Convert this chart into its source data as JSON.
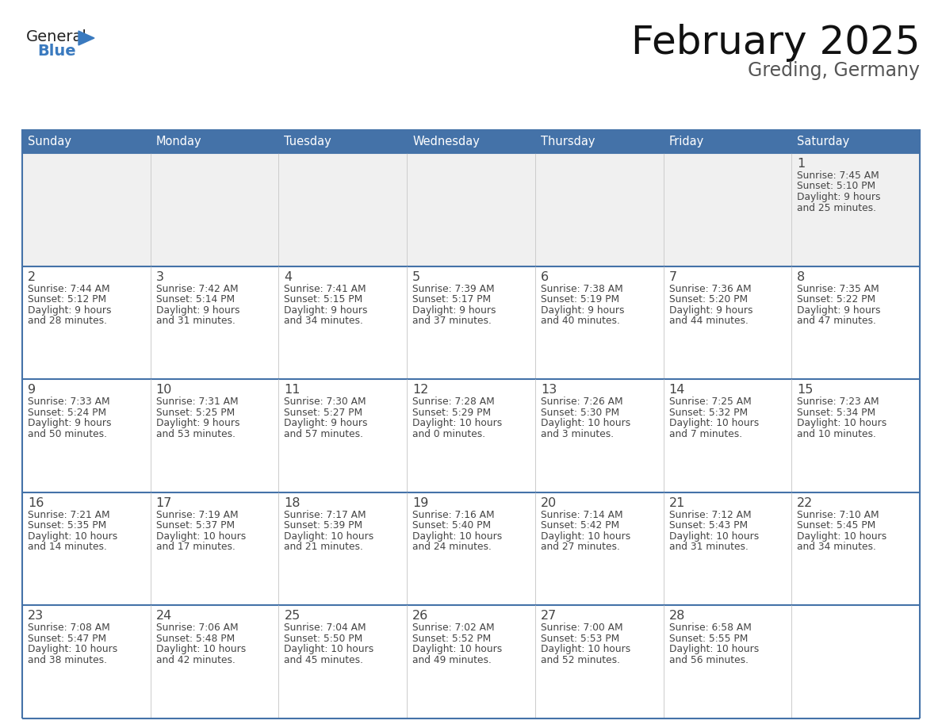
{
  "title": "February 2025",
  "subtitle": "Greding, Germany",
  "header_bg": "#4472a8",
  "header_text_color": "#ffffff",
  "week1_bg": "#f0f0f0",
  "cell_bg": "#ffffff",
  "border_color": "#4472a8",
  "grid_color": "#cccccc",
  "text_color": "#444444",
  "day_num_color": "#444444",
  "day_headers": [
    "Sunday",
    "Monday",
    "Tuesday",
    "Wednesday",
    "Thursday",
    "Friday",
    "Saturday"
  ],
  "weeks": [
    [
      {
        "day": null,
        "info": null
      },
      {
        "day": null,
        "info": null
      },
      {
        "day": null,
        "info": null
      },
      {
        "day": null,
        "info": null
      },
      {
        "day": null,
        "info": null
      },
      {
        "day": null,
        "info": null
      },
      {
        "day": "1",
        "info": "Sunrise: 7:45 AM\nSunset: 5:10 PM\nDaylight: 9 hours\nand 25 minutes."
      }
    ],
    [
      {
        "day": "2",
        "info": "Sunrise: 7:44 AM\nSunset: 5:12 PM\nDaylight: 9 hours\nand 28 minutes."
      },
      {
        "day": "3",
        "info": "Sunrise: 7:42 AM\nSunset: 5:14 PM\nDaylight: 9 hours\nand 31 minutes."
      },
      {
        "day": "4",
        "info": "Sunrise: 7:41 AM\nSunset: 5:15 PM\nDaylight: 9 hours\nand 34 minutes."
      },
      {
        "day": "5",
        "info": "Sunrise: 7:39 AM\nSunset: 5:17 PM\nDaylight: 9 hours\nand 37 minutes."
      },
      {
        "day": "6",
        "info": "Sunrise: 7:38 AM\nSunset: 5:19 PM\nDaylight: 9 hours\nand 40 minutes."
      },
      {
        "day": "7",
        "info": "Sunrise: 7:36 AM\nSunset: 5:20 PM\nDaylight: 9 hours\nand 44 minutes."
      },
      {
        "day": "8",
        "info": "Sunrise: 7:35 AM\nSunset: 5:22 PM\nDaylight: 9 hours\nand 47 minutes."
      }
    ],
    [
      {
        "day": "9",
        "info": "Sunrise: 7:33 AM\nSunset: 5:24 PM\nDaylight: 9 hours\nand 50 minutes."
      },
      {
        "day": "10",
        "info": "Sunrise: 7:31 AM\nSunset: 5:25 PM\nDaylight: 9 hours\nand 53 minutes."
      },
      {
        "day": "11",
        "info": "Sunrise: 7:30 AM\nSunset: 5:27 PM\nDaylight: 9 hours\nand 57 minutes."
      },
      {
        "day": "12",
        "info": "Sunrise: 7:28 AM\nSunset: 5:29 PM\nDaylight: 10 hours\nand 0 minutes."
      },
      {
        "day": "13",
        "info": "Sunrise: 7:26 AM\nSunset: 5:30 PM\nDaylight: 10 hours\nand 3 minutes."
      },
      {
        "day": "14",
        "info": "Sunrise: 7:25 AM\nSunset: 5:32 PM\nDaylight: 10 hours\nand 7 minutes."
      },
      {
        "day": "15",
        "info": "Sunrise: 7:23 AM\nSunset: 5:34 PM\nDaylight: 10 hours\nand 10 minutes."
      }
    ],
    [
      {
        "day": "16",
        "info": "Sunrise: 7:21 AM\nSunset: 5:35 PM\nDaylight: 10 hours\nand 14 minutes."
      },
      {
        "day": "17",
        "info": "Sunrise: 7:19 AM\nSunset: 5:37 PM\nDaylight: 10 hours\nand 17 minutes."
      },
      {
        "day": "18",
        "info": "Sunrise: 7:17 AM\nSunset: 5:39 PM\nDaylight: 10 hours\nand 21 minutes."
      },
      {
        "day": "19",
        "info": "Sunrise: 7:16 AM\nSunset: 5:40 PM\nDaylight: 10 hours\nand 24 minutes."
      },
      {
        "day": "20",
        "info": "Sunrise: 7:14 AM\nSunset: 5:42 PM\nDaylight: 10 hours\nand 27 minutes."
      },
      {
        "day": "21",
        "info": "Sunrise: 7:12 AM\nSunset: 5:43 PM\nDaylight: 10 hours\nand 31 minutes."
      },
      {
        "day": "22",
        "info": "Sunrise: 7:10 AM\nSunset: 5:45 PM\nDaylight: 10 hours\nand 34 minutes."
      }
    ],
    [
      {
        "day": "23",
        "info": "Sunrise: 7:08 AM\nSunset: 5:47 PM\nDaylight: 10 hours\nand 38 minutes."
      },
      {
        "day": "24",
        "info": "Sunrise: 7:06 AM\nSunset: 5:48 PM\nDaylight: 10 hours\nand 42 minutes."
      },
      {
        "day": "25",
        "info": "Sunrise: 7:04 AM\nSunset: 5:50 PM\nDaylight: 10 hours\nand 45 minutes."
      },
      {
        "day": "26",
        "info": "Sunrise: 7:02 AM\nSunset: 5:52 PM\nDaylight: 10 hours\nand 49 minutes."
      },
      {
        "day": "27",
        "info": "Sunrise: 7:00 AM\nSunset: 5:53 PM\nDaylight: 10 hours\nand 52 minutes."
      },
      {
        "day": "28",
        "info": "Sunrise: 6:58 AM\nSunset: 5:55 PM\nDaylight: 10 hours\nand 56 minutes."
      },
      {
        "day": null,
        "info": null
      }
    ]
  ],
  "logo_general_color": "#222222",
  "logo_blue_color": "#3a7abf",
  "logo_triangle_color": "#3a7abf",
  "figwidth": 11.88,
  "figheight": 9.18,
  "dpi": 100
}
